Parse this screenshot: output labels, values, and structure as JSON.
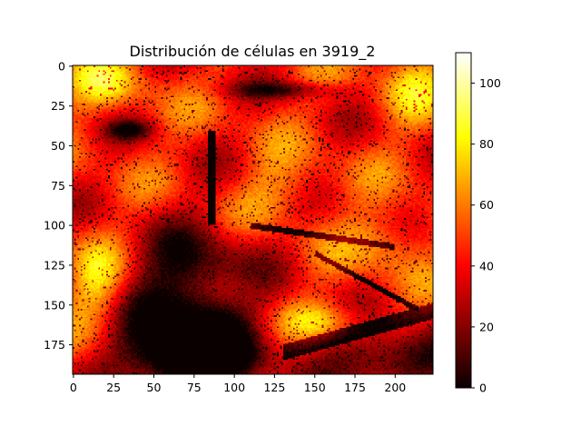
{
  "chart_data": {
    "type": "heatmap",
    "title": "Distribución de células en 3919_2",
    "xlabel": "",
    "ylabel": "",
    "colormap": "hot",
    "grid": false,
    "x_range": [
      -0.5,
      223.5
    ],
    "y_range": [
      193.5,
      -0.5
    ],
    "x_ticks": [
      0,
      25,
      50,
      75,
      100,
      125,
      150,
      175,
      200
    ],
    "y_ticks": [
      0,
      25,
      50,
      75,
      100,
      125,
      150,
      175
    ],
    "colorbar": {
      "range": [
        0,
        110
      ],
      "ticks": [
        0,
        20,
        40,
        60,
        80,
        100
      ]
    },
    "description_regions": {
      "bright_regions": [
        "top-left",
        "top-right",
        "left edge around y=125-160",
        "bottom-center near x=150,y=155"
      ],
      "dark_regions": [
        "center-left basin x=40-120, y=100-194",
        "bottom-right band"
      ]
    }
  }
}
